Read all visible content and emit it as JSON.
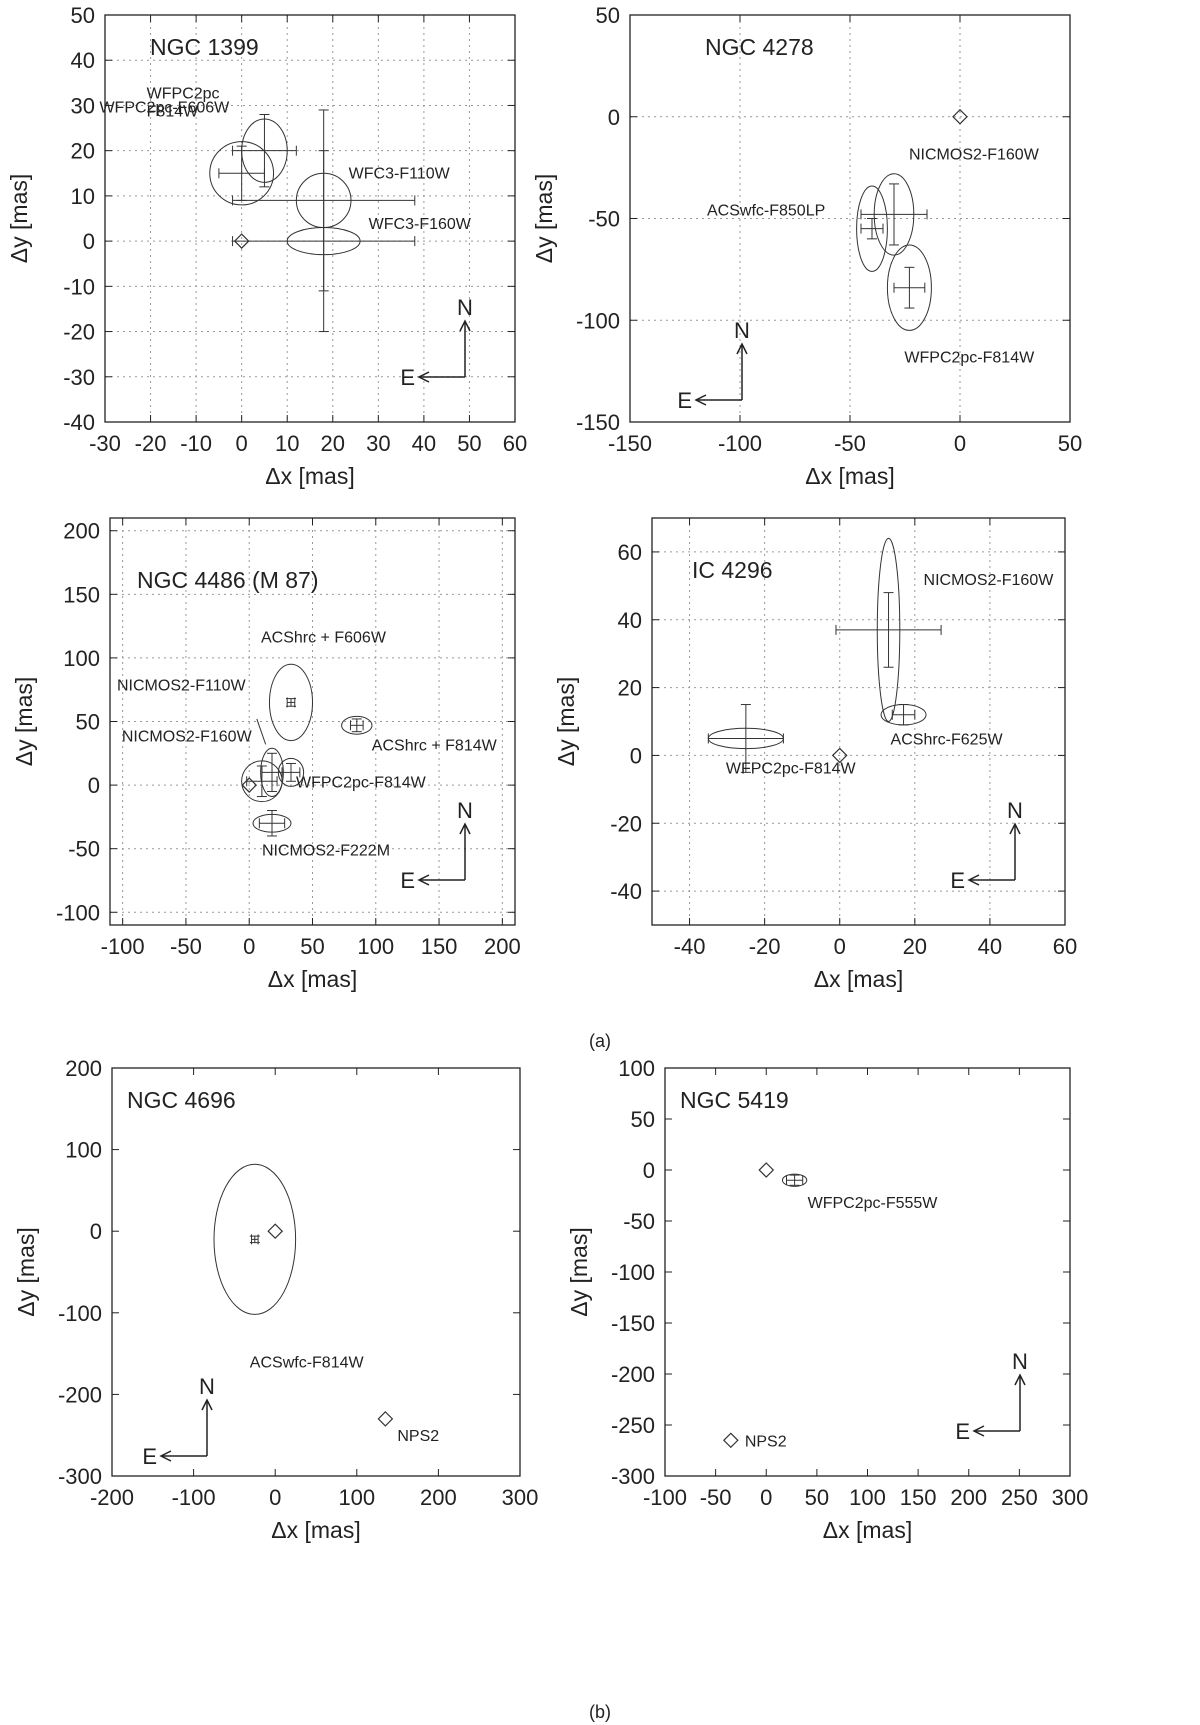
{
  "figure_labels": [
    "(a)",
    "(b)"
  ],
  "chart_data": [
    {
      "type": "scatter",
      "title": "NGC 1399",
      "xlabel": "Δx [mas]",
      "ylabel": "Δy [mas]",
      "xlim": [
        -30,
        60
      ],
      "ylim": [
        -40,
        50
      ],
      "xticks": [
        -30,
        -20,
        -10,
        0,
        10,
        20,
        30,
        40,
        50,
        60
      ],
      "yticks": [
        -40,
        -30,
        -20,
        -10,
        0,
        10,
        20,
        30,
        40,
        50
      ],
      "grid": true,
      "compass": {
        "north": "N",
        "east": "E",
        "placement": "bottom-right"
      },
      "reference_point": {
        "x": 0,
        "y": 0
      },
      "measurements": [
        {
          "label": "WFPC2pc-F606W",
          "x": 5,
          "y": 20,
          "xerr": 7,
          "yerr": 8,
          "ell_rx": 5,
          "ell_ry": 7
        },
        {
          "label": "WFPC2pc F814W",
          "x": 0,
          "y": 15,
          "xerr": 5,
          "yerr": 6,
          "ell_rx": 7,
          "ell_ry": 7
        },
        {
          "label": "WFC3-F110W",
          "x": 18,
          "y": 9,
          "xerr": 20,
          "yerr": 20,
          "ell_rx": 6,
          "ell_ry": 6
        },
        {
          "label": "WFC3-F160W",
          "x": 18,
          "y": 0,
          "xerr": 20,
          "yerr": 20,
          "ell_rx": 8,
          "ell_ry": 3
        }
      ]
    },
    {
      "type": "scatter",
      "title": "NGC 4278",
      "xlabel": "Δx [mas]",
      "ylabel": "Δy [mas]",
      "xlim": [
        -150,
        50
      ],
      "ylim": [
        -150,
        50
      ],
      "xticks": [
        -150,
        -100,
        -50,
        0,
        50
      ],
      "yticks": [
        -150,
        -100,
        -50,
        0,
        50
      ],
      "grid": true,
      "compass": {
        "north": "N",
        "east": "E",
        "placement": "bottom-left"
      },
      "reference_point": {
        "x": 0,
        "y": 0
      },
      "measurements": [
        {
          "label": "NICMOS2-F160W",
          "x": -30,
          "y": -48,
          "xerr": 15,
          "yerr": 15,
          "ell_rx": 9,
          "ell_ry": 20
        },
        {
          "label": "ACSwfc-F850LP",
          "x": -40,
          "y": -55,
          "xerr": 5,
          "yerr": 5,
          "ell_rx": 7,
          "ell_ry": 21
        },
        {
          "label": "WFPC2pc-F814W",
          "x": -23,
          "y": -84,
          "xerr": 7,
          "yerr": 10,
          "ell_rx": 10,
          "ell_ry": 21
        }
      ]
    },
    {
      "type": "scatter",
      "title": "NGC 4486 (M 87)",
      "xlabel": "Δx [mas]",
      "ylabel": "Δy [mas]",
      "xlim": [
        -110,
        210
      ],
      "ylim": [
        -110,
        210
      ],
      "xticks": [
        -100,
        -50,
        0,
        50,
        100,
        150,
        200
      ],
      "yticks": [
        -100,
        -50,
        0,
        50,
        100,
        150,
        200
      ],
      "grid": true,
      "compass": {
        "north": "N",
        "east": "E",
        "placement": "bottom-right"
      },
      "reference_point": {
        "x": 0,
        "y": 0
      },
      "measurements": [
        {
          "label": "ACShrc + F606W",
          "x": 33,
          "y": 65,
          "xerr": 3,
          "yerr": 3,
          "ell_rx": 17,
          "ell_ry": 30
        },
        {
          "label": "ACShrc + F814W",
          "x": 85,
          "y": 47,
          "xerr": 5,
          "yerr": 5,
          "ell_rx": 12,
          "ell_ry": 7
        },
        {
          "label": "NICMOS2-F110W",
          "x": 18,
          "y": 10,
          "xerr": 8,
          "yerr": 15,
          "ell_rx": 9,
          "ell_ry": 19
        },
        {
          "label": "NICMOS2-F160W",
          "x": 10,
          "y": 3,
          "xerr": 12,
          "yerr": 12,
          "ell_rx": 16,
          "ell_ry": 16
        },
        {
          "label": "WFPC2pc-F814W",
          "x": 33,
          "y": 10,
          "xerr": 7,
          "yerr": 7,
          "ell_rx": 10,
          "ell_ry": 11
        },
        {
          "label": "NICMOS2-F222M",
          "x": 18,
          "y": -30,
          "xerr": 10,
          "yerr": 10,
          "ell_rx": 15,
          "ell_ry": 7
        }
      ]
    },
    {
      "type": "scatter",
      "title": "IC 4296",
      "xlabel": "Δx [mas]",
      "ylabel": "Δy [mas]",
      "xlim": [
        -50,
        60
      ],
      "ylim": [
        -50,
        70
      ],
      "xticks": [
        -40,
        -20,
        0,
        20,
        40,
        60
      ],
      "yticks": [
        -40,
        -20,
        0,
        20,
        40,
        60
      ],
      "grid": true,
      "compass": {
        "north": "N",
        "east": "E",
        "placement": "bottom-right"
      },
      "reference_point": {
        "x": 0,
        "y": 0
      },
      "measurements": [
        {
          "label": "NICMOS2-F160W",
          "x": 13,
          "y": 37,
          "xerr": 14,
          "yerr": 11,
          "ell_rx": 3,
          "ell_ry": 27
        },
        {
          "label": "ACShrc-F625W",
          "x": 17,
          "y": 12,
          "xerr": 3,
          "yerr": 3,
          "ell_rx": 6,
          "ell_ry": 3
        },
        {
          "label": "WFPC2pc-F814W",
          "x": -25,
          "y": 5,
          "xerr": 10,
          "yerr": 10,
          "ell_rx": 10,
          "ell_ry": 3
        }
      ]
    },
    {
      "type": "scatter",
      "title": "NGC 4696",
      "xlabel": "Δx [mas]",
      "ylabel": "Δy [mas]",
      "xlim": [
        -200,
        300
      ],
      "ylim": [
        -300,
        200
      ],
      "xticks": [
        -200,
        -100,
        0,
        100,
        200,
        300
      ],
      "yticks": [
        -300,
        -200,
        -100,
        0,
        100,
        200
      ],
      "grid": false,
      "compass": {
        "north": "N",
        "east": "E",
        "placement": "bottom-left"
      },
      "reference_point": {
        "x": 0,
        "y": 0
      },
      "extra_points": [
        {
          "label": "NPS2",
          "x": 135,
          "y": -230
        }
      ],
      "measurements": [
        {
          "label": "ACSwfc-F814W",
          "x": -25,
          "y": -10,
          "xerr": 4,
          "yerr": 4,
          "ell_rx": 50,
          "ell_ry": 92
        }
      ]
    },
    {
      "type": "scatter",
      "title": "NGC 5419",
      "xlabel": "Δx [mas]",
      "ylabel": "Δy [mas]",
      "xlim": [
        -100,
        300
      ],
      "ylim": [
        -300,
        100
      ],
      "xticks": [
        -100,
        -50,
        0,
        50,
        100,
        150,
        200,
        250,
        300
      ],
      "yticks": [
        -300,
        -250,
        -200,
        -150,
        -100,
        -50,
        0,
        50,
        100
      ],
      "grid": false,
      "compass": {
        "north": "N",
        "east": "E",
        "placement": "bottom-right"
      },
      "reference_point": {
        "x": 0,
        "y": 0
      },
      "extra_points": [
        {
          "label": "NPS2",
          "x": -35,
          "y": -265
        }
      ],
      "measurements": [
        {
          "label": "WFPC2pc-F555W",
          "x": 28,
          "y": -10,
          "xerr": 8,
          "yerr": 5,
          "ell_rx": 12,
          "ell_ry": 6
        }
      ]
    }
  ]
}
